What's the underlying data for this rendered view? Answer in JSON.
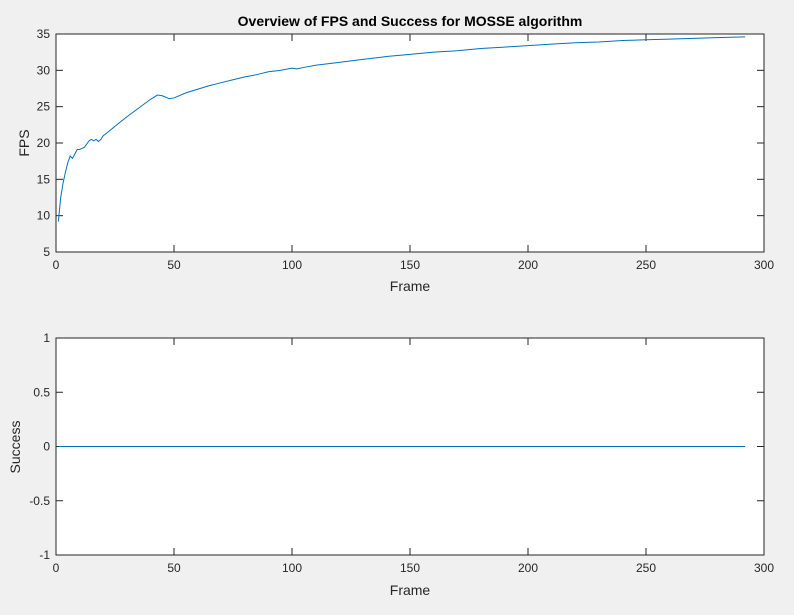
{
  "window": {
    "background": "#f0f0f0"
  },
  "chart_data": [
    {
      "type": "line",
      "title": "Overview of FPS and Success for MOSSE algorithm",
      "xlabel": "Frame",
      "ylabel": "FPS",
      "xlim": [
        0,
        300
      ],
      "ylim": [
        5,
        35
      ],
      "xticks": [
        0,
        50,
        100,
        150,
        200,
        250,
        300
      ],
      "yticks": [
        5,
        10,
        15,
        20,
        25,
        30,
        35
      ],
      "xtick_labels": [
        "0",
        "50",
        "100",
        "150",
        "200",
        "250",
        "300"
      ],
      "ytick_labels": [
        "5",
        "10",
        "15",
        "20",
        "25",
        "30",
        "35"
      ],
      "grid": false,
      "series": [
        {
          "color": "#0072bd",
          "points": [
            [
              1,
              9.2
            ],
            [
              2,
              12.5
            ],
            [
              3,
              14.5
            ],
            [
              4,
              16.0
            ],
            [
              5,
              17.3
            ],
            [
              6,
              18.2
            ],
            [
              7,
              17.9
            ],
            [
              8,
              18.5
            ],
            [
              9,
              19.1
            ],
            [
              10,
              19.1
            ],
            [
              12,
              19.4
            ],
            [
              14,
              20.3
            ],
            [
              15,
              20.5
            ],
            [
              16,
              20.3
            ],
            [
              17,
              20.5
            ],
            [
              18,
              20.2
            ],
            [
              19,
              20.5
            ],
            [
              20,
              21.0
            ],
            [
              22,
              21.5
            ],
            [
              25,
              22.3
            ],
            [
              30,
              23.6
            ],
            [
              35,
              24.8
            ],
            [
              40,
              26.0
            ],
            [
              43,
              26.6
            ],
            [
              45,
              26.5
            ],
            [
              48,
              26.1
            ],
            [
              50,
              26.2
            ],
            [
              55,
              26.9
            ],
            [
              60,
              27.4
            ],
            [
              65,
              27.9
            ],
            [
              70,
              28.3
            ],
            [
              75,
              28.7
            ],
            [
              80,
              29.1
            ],
            [
              85,
              29.4
            ],
            [
              90,
              29.8
            ],
            [
              95,
              30.0
            ],
            [
              100,
              30.3
            ],
            [
              102,
              30.2
            ],
            [
              105,
              30.4
            ],
            [
              110,
              30.7
            ],
            [
              120,
              31.1
            ],
            [
              130,
              31.5
            ],
            [
              140,
              31.9
            ],
            [
              150,
              32.2
            ],
            [
              160,
              32.5
            ],
            [
              170,
              32.7
            ],
            [
              180,
              33.0
            ],
            [
              190,
              33.2
            ],
            [
              200,
              33.4
            ],
            [
              210,
              33.6
            ],
            [
              220,
              33.8
            ],
            [
              230,
              33.9
            ],
            [
              240,
              34.1
            ],
            [
              250,
              34.2
            ],
            [
              260,
              34.3
            ],
            [
              270,
              34.4
            ],
            [
              280,
              34.5
            ],
            [
              292,
              34.6
            ]
          ]
        }
      ]
    },
    {
      "type": "line",
      "title": "",
      "xlabel": "Frame",
      "ylabel": "Success",
      "xlim": [
        0,
        300
      ],
      "ylim": [
        -1,
        1
      ],
      "xticks": [
        0,
        50,
        100,
        150,
        200,
        250,
        300
      ],
      "yticks": [
        -1,
        -0.5,
        0,
        0.5,
        1
      ],
      "xtick_labels": [
        "0",
        "50",
        "100",
        "150",
        "200",
        "250",
        "300"
      ],
      "ytick_labels": [
        "-1",
        "-0.5",
        "0",
        "0.5",
        "1"
      ],
      "grid": false,
      "series": [
        {
          "color": "#0072bd",
          "points": [
            [
              1,
              0
            ],
            [
              292,
              0
            ]
          ]
        }
      ]
    }
  ]
}
